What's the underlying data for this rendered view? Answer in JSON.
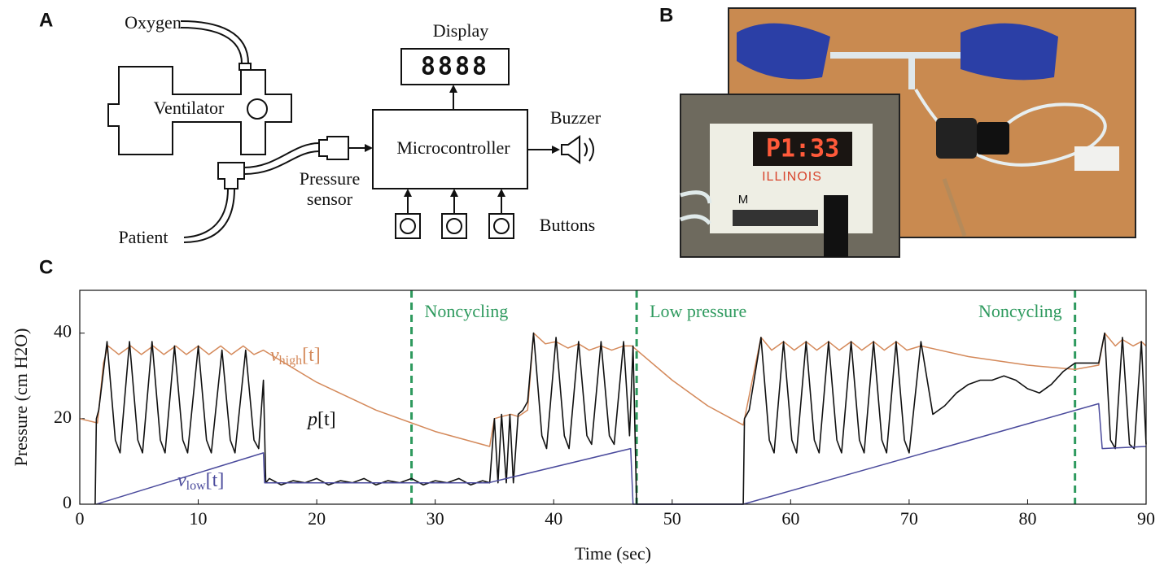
{
  "panel_labels": [
    "A",
    "B",
    "C"
  ],
  "diagram": {
    "oxygen": "Oxygen",
    "ventilator": "Ventilator",
    "patient": "Patient",
    "pressure_sensor": [
      "Pressure",
      "sensor"
    ],
    "display": "Display",
    "display_digits": "8888",
    "microcontroller": "Microcontroller",
    "buzzer": "Buzzer",
    "buttons": "Buttons"
  },
  "photo": {
    "inset_display": "P1:33",
    "inset_brand": "ILLINOIS",
    "inset_button": "M"
  },
  "chart_data": {
    "type": "line",
    "xlabel": "Time (sec)",
    "ylabel": "Pressure (cm H2O)",
    "xlim": [
      0,
      90
    ],
    "ylim": [
      0,
      50
    ],
    "xticks": [
      0,
      10,
      20,
      30,
      40,
      50,
      60,
      70,
      80,
      90
    ],
    "yticks": [
      0,
      20,
      40
    ],
    "annotation_color": "#2e9a5e",
    "annotations": [
      {
        "x": 28,
        "text": "Noncycling"
      },
      {
        "x": 47,
        "text": "Low pressure"
      },
      {
        "x": 84,
        "text": "Noncycling"
      }
    ],
    "series": [
      {
        "symbol": "v",
        "subscript": "high",
        "argument": "[t]",
        "color": "#d4895a",
        "x": [
          0,
          1.5,
          2.0,
          2.4,
          3.3,
          4.3,
          5.2,
          6.2,
          7.1,
          8.1,
          9.0,
          10.0,
          10.9,
          11.9,
          12.8,
          13.8,
          14.7,
          15.5,
          20,
          25,
          30,
          34.6,
          35.0,
          35.6,
          36.4,
          37.0,
          37.8,
          38.3,
          39.3,
          40.2,
          41.2,
          42.1,
          43.0,
          44.0,
          44.9,
          45.9,
          46.6,
          50,
          53,
          56,
          57.5,
          58.4,
          59.4,
          60.3,
          61.3,
          62.2,
          63.2,
          64.1,
          65.1,
          66.0,
          67.0,
          67.9,
          68.9,
          69.8,
          71.0,
          75,
          80,
          84,
          86,
          86.5,
          87.4,
          88,
          88.9,
          89.6,
          90
        ],
        "values": [
          20,
          19,
          33,
          37,
          35,
          37,
          35,
          37,
          35,
          37,
          35,
          37,
          35,
          37,
          35,
          37,
          35,
          36,
          28.5,
          22,
          17,
          13.5,
          20,
          20.5,
          21,
          20.5,
          22,
          40,
          37.5,
          38,
          36.5,
          37.5,
          36,
          37,
          36,
          37,
          37,
          29,
          23,
          18.5,
          39,
          36,
          38,
          36,
          38,
          36,
          38,
          36,
          38,
          36,
          38,
          36,
          38,
          36,
          37,
          34.5,
          32.5,
          31.5,
          32.5,
          40,
          37,
          38.5,
          37,
          38,
          37
        ]
      },
      {
        "symbol": "p",
        "argument": "[t]",
        "color": "#111111",
        "x": [
          1.3,
          1.4,
          1.6,
          2.3,
          3.0,
          3.4,
          4.2,
          4.9,
          5.3,
          6.1,
          6.8,
          7.2,
          8.0,
          8.7,
          9.1,
          10.0,
          10.7,
          11.1,
          12.0,
          12.7,
          13.1,
          14.0,
          14.7,
          15.1,
          15.5,
          15.7,
          16,
          17,
          18,
          19,
          20,
          21,
          22,
          23,
          24,
          25,
          26,
          27,
          28,
          29,
          30,
          31,
          32,
          33,
          34,
          34.6,
          35.0,
          35.3,
          35.6,
          36.0,
          36.3,
          36.6,
          37.0,
          37.4,
          37.8,
          38.3,
          39.0,
          39.4,
          40.2,
          40.9,
          41.3,
          42.1,
          42.8,
          43.2,
          44.0,
          44.7,
          45.1,
          45.9,
          46.4,
          46.7,
          47,
          56,
          56.1,
          56.5,
          57.5,
          58.2,
          58.6,
          59.4,
          60.1,
          60.5,
          61.3,
          62.0,
          62.4,
          63.2,
          63.9,
          64.3,
          65.1,
          65.8,
          66.2,
          67.0,
          67.7,
          68.1,
          68.9,
          69.6,
          70.0,
          71.0,
          72,
          73,
          74,
          75,
          76,
          77,
          78,
          79,
          80,
          81,
          82,
          83,
          84,
          85,
          86,
          86.5,
          87,
          87.4,
          88,
          88.6,
          89,
          89.6,
          90
        ],
        "values": [
          0,
          20,
          22,
          38,
          15,
          12,
          38,
          15,
          12,
          38,
          15,
          12,
          37,
          15,
          12,
          37,
          15,
          12,
          36,
          15,
          12,
          36,
          15,
          13,
          29,
          5,
          6,
          4.5,
          5.5,
          5,
          6,
          4.5,
          5.5,
          5,
          6,
          4.5,
          5.5,
          5,
          6,
          4.5,
          5.5,
          5,
          6,
          4.5,
          5.5,
          5,
          20,
          5,
          21,
          5,
          21,
          5,
          21,
          22,
          24,
          40,
          16,
          13,
          39,
          16,
          13,
          38,
          16,
          14,
          38,
          16,
          14,
          38,
          16,
          37,
          0,
          0,
          20,
          22,
          39,
          15,
          12,
          38,
          15,
          12,
          38,
          15,
          12,
          38,
          15,
          12,
          38,
          15,
          12,
          38,
          15,
          12,
          38,
          15,
          12,
          38,
          21,
          23,
          26,
          28,
          29,
          29,
          30,
          29,
          27,
          26,
          28,
          31,
          33,
          33,
          33,
          40,
          15,
          13,
          39,
          14,
          13,
          38,
          14
        ]
      },
      {
        "symbol": "v",
        "subscript": "low",
        "argument": "[t]",
        "color": "#4a4a9c",
        "x": [
          1.4,
          15.5,
          15.6,
          34.5,
          46.5,
          46.7,
          56,
          86,
          86.3,
          90
        ],
        "values": [
          0,
          12,
          5,
          5,
          13,
          0,
          0,
          23.5,
          13,
          13.5
        ]
      }
    ]
  }
}
